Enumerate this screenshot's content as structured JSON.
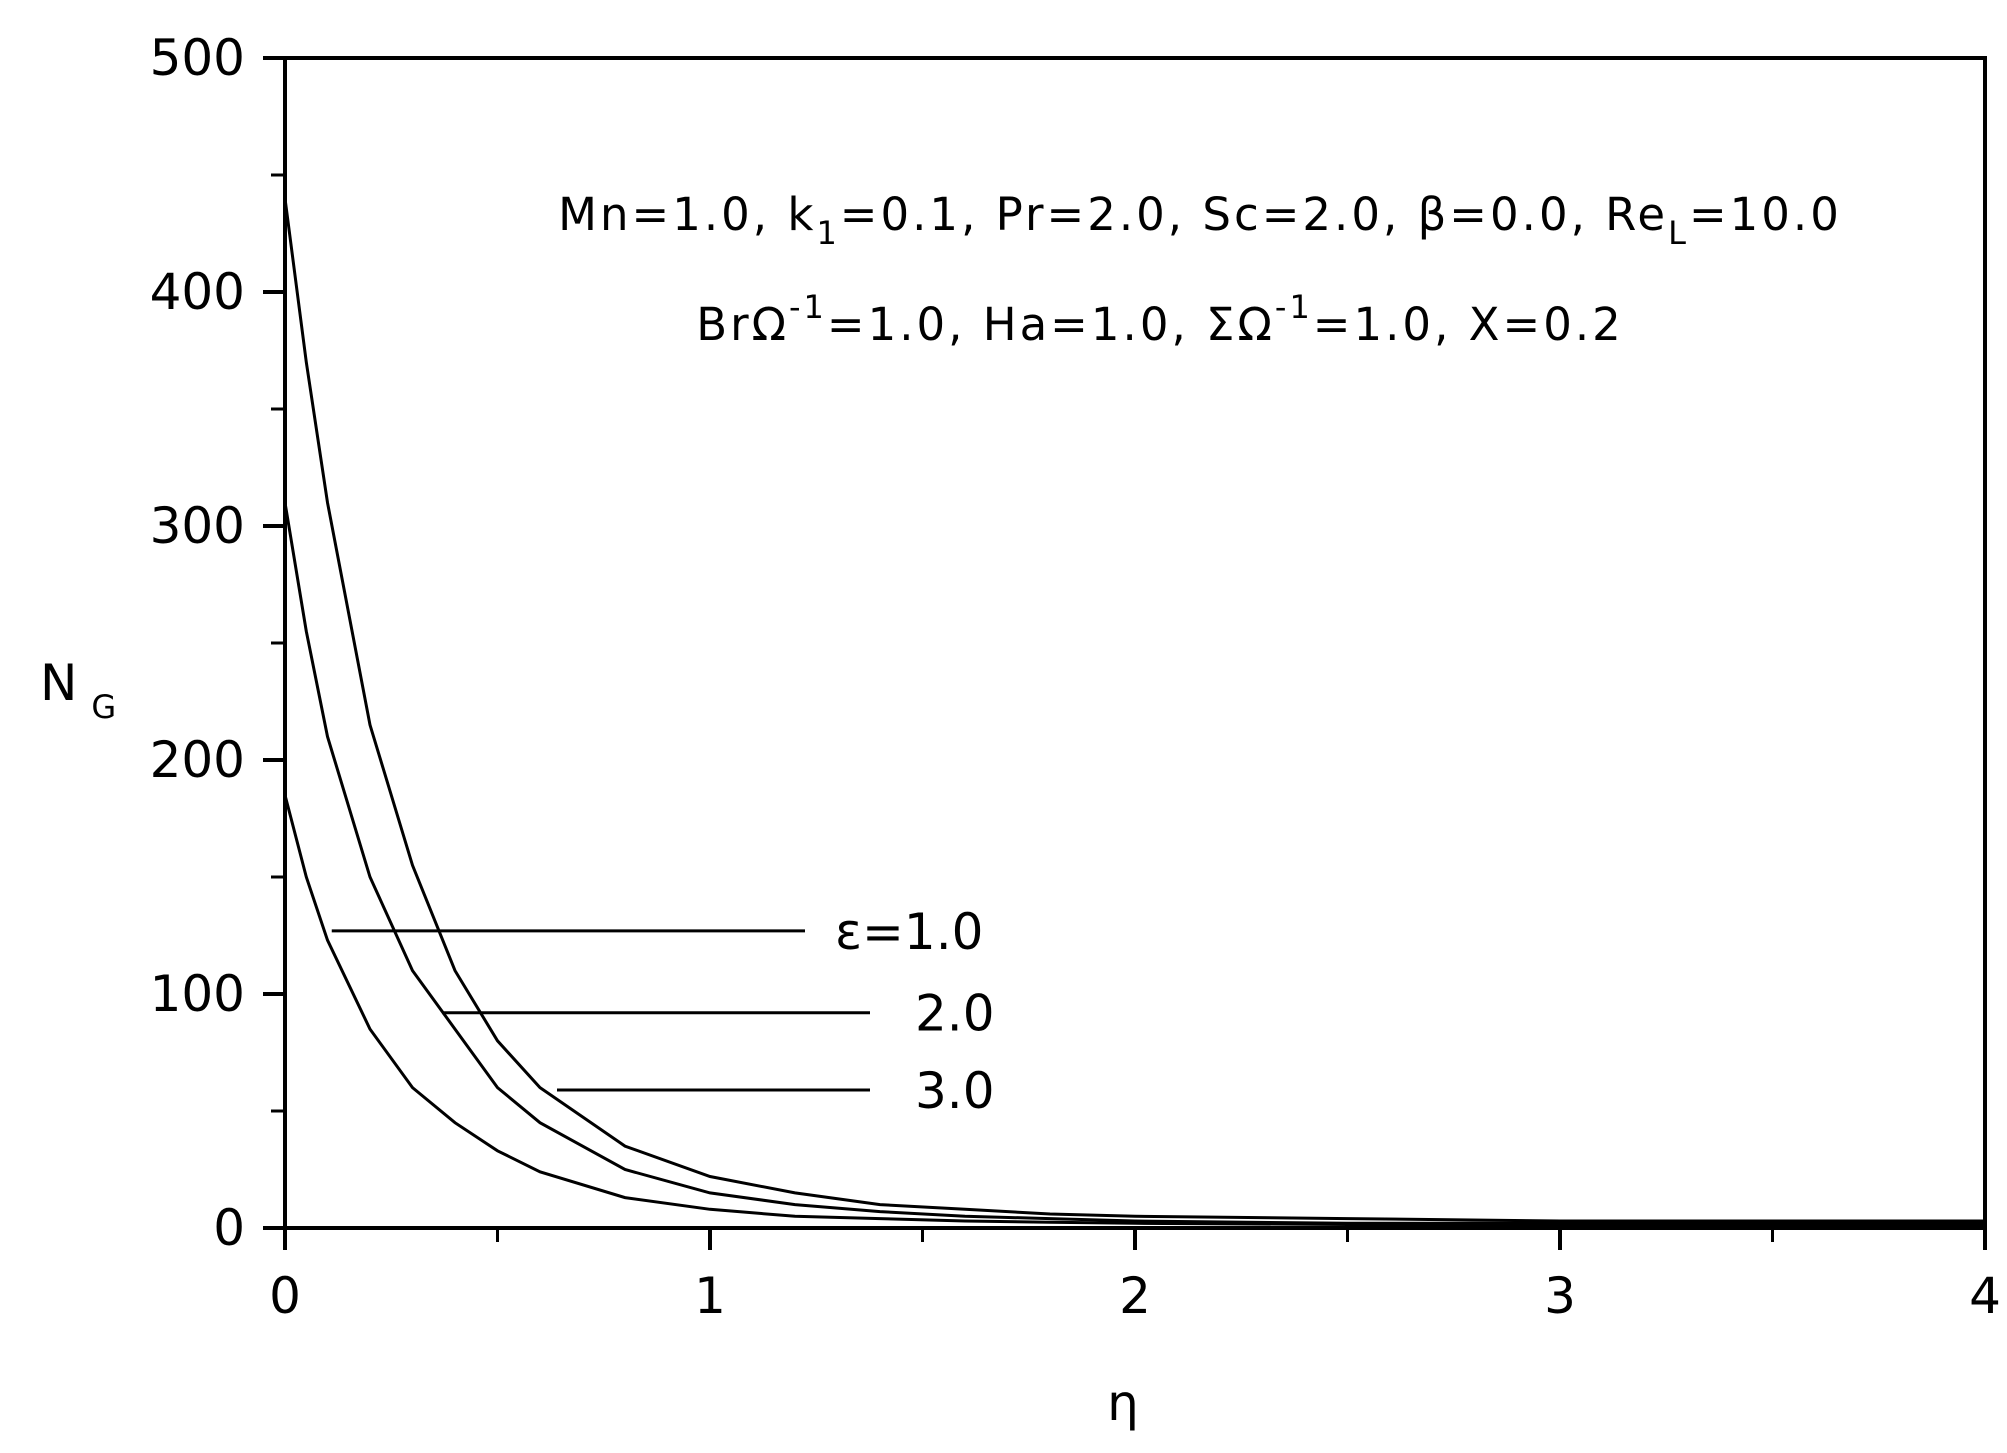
{
  "chart_data": {
    "type": "line",
    "title": "",
    "xlabel": "η",
    "ylabel": "N",
    "ylabel_sub": "G",
    "xlim": [
      0,
      4
    ],
    "ylim": [
      0,
      500
    ],
    "grid": false,
    "x_ticks": [
      0,
      1,
      2,
      3,
      4
    ],
    "x_tick_labels": [
      "0",
      "1",
      "2",
      "3",
      "4"
    ],
    "y_ticks": [
      0,
      100,
      200,
      300,
      400,
      500
    ],
    "y_tick_labels": [
      "0",
      "100",
      "200",
      "300",
      "400",
      "500"
    ],
    "annotation": {
      "line1": {
        "mn": "Mn=1.0, k",
        "k_sub": "1",
        "mid": "=0.1, Pr=2.0, Sc=2.0, β=0.0, Re",
        "re_sub": "L",
        "end": "=10.0"
      },
      "line2": {
        "br": "BrΩ",
        "br_sup": "-1",
        "mid": "=1.0, Ha=1.0, ΣΩ",
        "sig_sup": "-1",
        "end": "=1.0, X=0.2"
      }
    },
    "series": [
      {
        "label": "ε=1.0",
        "x": [
          0,
          0.05,
          0.1,
          0.2,
          0.3,
          0.4,
          0.5,
          0.6,
          0.8,
          1.0,
          1.2,
          1.4,
          1.6,
          1.8,
          2.0,
          2.5,
          3.0,
          3.5,
          4.0
        ],
        "y": [
          185,
          150,
          123,
          85,
          60,
          45,
          33,
          24,
          13,
          8,
          5,
          4,
          3,
          2.5,
          2,
          1.5,
          1,
          1,
          1
        ],
        "label_point": [
          0.11,
          127
        ]
      },
      {
        "label": "2.0",
        "x": [
          0,
          0.05,
          0.1,
          0.2,
          0.3,
          0.4,
          0.5,
          0.6,
          0.8,
          1.0,
          1.2,
          1.4,
          1.6,
          1.8,
          2.0,
          2.5,
          3.0,
          3.5,
          4.0
        ],
        "y": [
          310,
          255,
          210,
          150,
          110,
          85,
          60,
          45,
          25,
          15,
          10,
          7,
          5,
          4,
          3,
          2,
          2,
          2,
          2
        ],
        "label_point": [
          0.37,
          92
        ]
      },
      {
        "label": "3.0",
        "x": [
          0,
          0.05,
          0.1,
          0.2,
          0.3,
          0.4,
          0.5,
          0.6,
          0.8,
          1.0,
          1.2,
          1.4,
          1.6,
          1.8,
          2.0,
          2.5,
          3.0,
          3.5,
          4.0
        ],
        "y": [
          440,
          370,
          310,
          215,
          155,
          110,
          80,
          60,
          35,
          22,
          15,
          10,
          8,
          6,
          5,
          4,
          3,
          3,
          3
        ],
        "label_point": [
          0.64,
          59
        ]
      }
    ]
  }
}
